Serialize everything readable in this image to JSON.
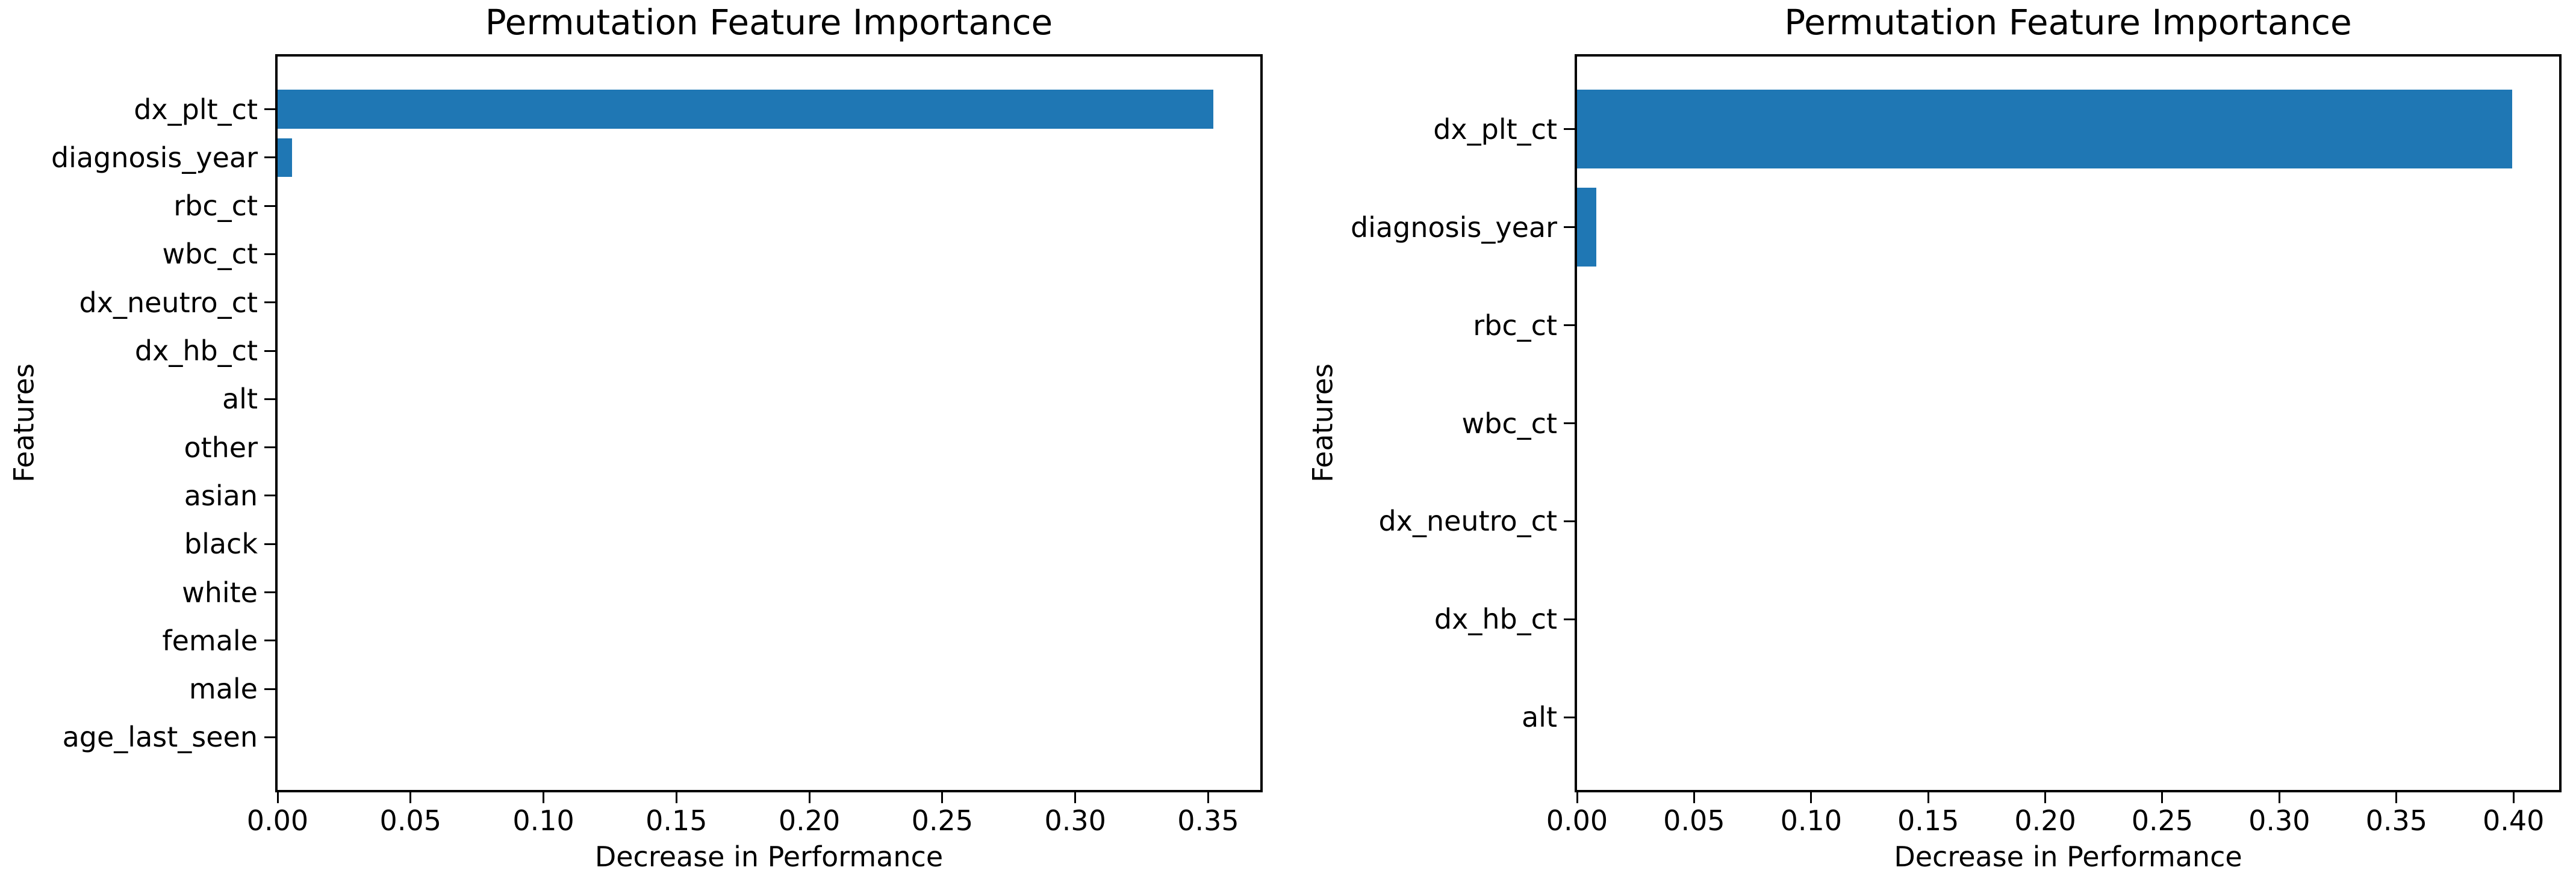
{
  "figure": {
    "background": "#ffffff",
    "text_color": "#000000",
    "spine_color": "#000000"
  },
  "chart_data": [
    {
      "type": "bar",
      "orientation": "horizontal",
      "title": "Permutation Feature Importance",
      "xlabel": "Decrease in Performance",
      "ylabel": "Features",
      "bar_color": "#1f77b4",
      "categories": [
        "dx_plt_ct",
        "diagnosis_year",
        "rbc_ct",
        "wbc_ct",
        "dx_neutro_ct",
        "dx_hb_ct",
        "alt",
        "other",
        "asian",
        "black",
        "white",
        "female",
        "male",
        "age_last_seen"
      ],
      "values": [
        0.352,
        0.0055,
        0,
        0,
        0,
        0,
        0,
        0,
        0,
        0,
        0,
        0,
        0,
        0
      ],
      "xlim": [
        0,
        0.3696
      ],
      "xticks": [
        0,
        0.05,
        0.1,
        0.15,
        0.2,
        0.25,
        0.3,
        0.35
      ],
      "xtick_labels": [
        "0.00",
        "0.05",
        "0.10",
        "0.15",
        "0.20",
        "0.25",
        "0.30",
        "0.35"
      ],
      "bar_height_fraction": 0.8,
      "grid": false,
      "legend": null
    },
    {
      "type": "bar",
      "orientation": "horizontal",
      "title": "Permutation Feature Importance",
      "xlabel": "Decrease in Performance",
      "ylabel": "Features",
      "bar_color": "#1f77b4",
      "categories": [
        "dx_plt_ct",
        "diagnosis_year",
        "rbc_ct",
        "wbc_ct",
        "dx_neutro_ct",
        "dx_hb_ct",
        "alt"
      ],
      "values": [
        0.3995,
        0.0082,
        0,
        0,
        0,
        0,
        0
      ],
      "xlim": [
        0,
        0.4195
      ],
      "xticks": [
        0,
        0.05,
        0.1,
        0.15,
        0.2,
        0.25,
        0.3,
        0.35,
        0.4
      ],
      "xtick_labels": [
        "0.00",
        "0.05",
        "0.10",
        "0.15",
        "0.20",
        "0.25",
        "0.30",
        "0.35",
        "0.40"
      ],
      "bar_height_fraction": 0.8,
      "grid": false,
      "legend": null
    }
  ]
}
